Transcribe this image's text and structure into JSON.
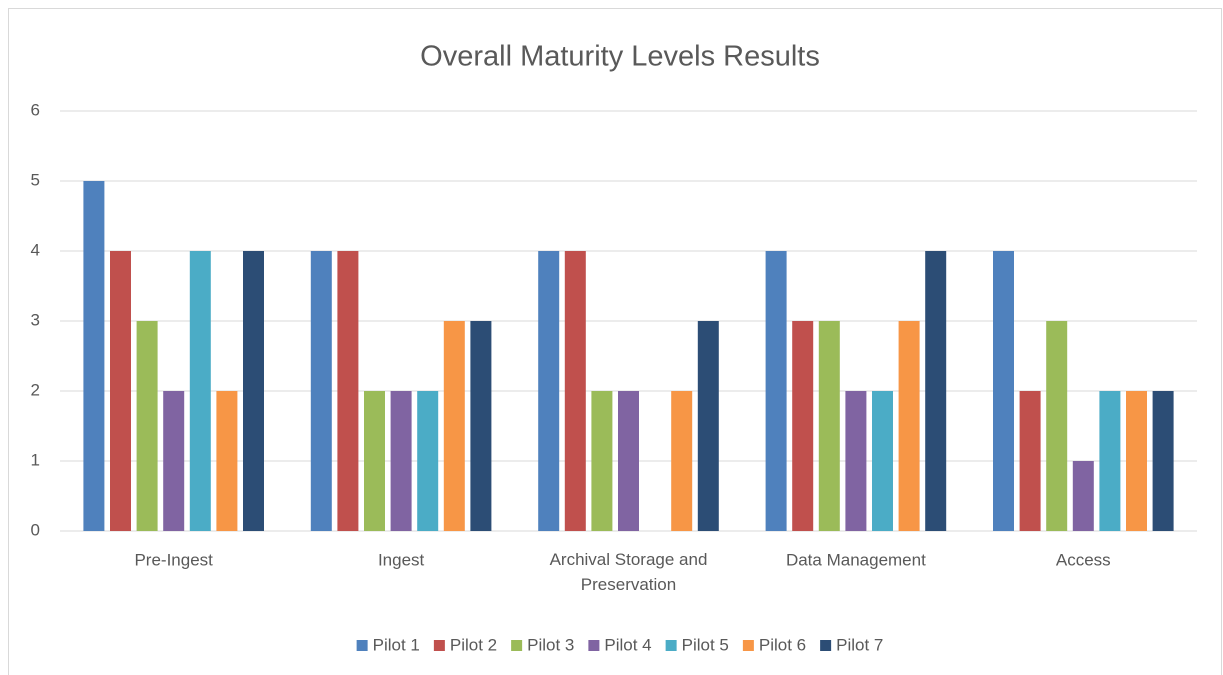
{
  "chart_data": {
    "type": "bar",
    "title": "Overall Maturity Levels Results",
    "categories": [
      "Pre-Ingest",
      "Ingest",
      "Archival Storage and Preservation",
      "Data Management",
      "Access"
    ],
    "series": [
      {
        "name": "Pilot 1",
        "color": "#4f81bd",
        "values": [
          5,
          4,
          4,
          4,
          4
        ]
      },
      {
        "name": "Pilot 2",
        "color": "#c0504d",
        "values": [
          4,
          4,
          4,
          3,
          2
        ]
      },
      {
        "name": "Pilot 3",
        "color": "#9bbb59",
        "values": [
          3,
          2,
          2,
          3,
          3
        ]
      },
      {
        "name": "Pilot 4",
        "color": "#8064a2",
        "values": [
          2,
          2,
          2,
          2,
          1
        ]
      },
      {
        "name": "Pilot 5",
        "color": "#4bacc6",
        "values": [
          4,
          2,
          0,
          2,
          2
        ]
      },
      {
        "name": "Pilot 6",
        "color": "#f79646",
        "values": [
          2,
          3,
          2,
          3,
          2
        ]
      },
      {
        "name": "Pilot 7",
        "color": "#2c4d75",
        "values": [
          4,
          3,
          3,
          4,
          2
        ]
      }
    ],
    "ylim": [
      0,
      6
    ],
    "yticks": [
      0,
      1,
      2,
      3,
      4,
      5,
      6
    ],
    "grid": true,
    "legend": "bottom"
  }
}
